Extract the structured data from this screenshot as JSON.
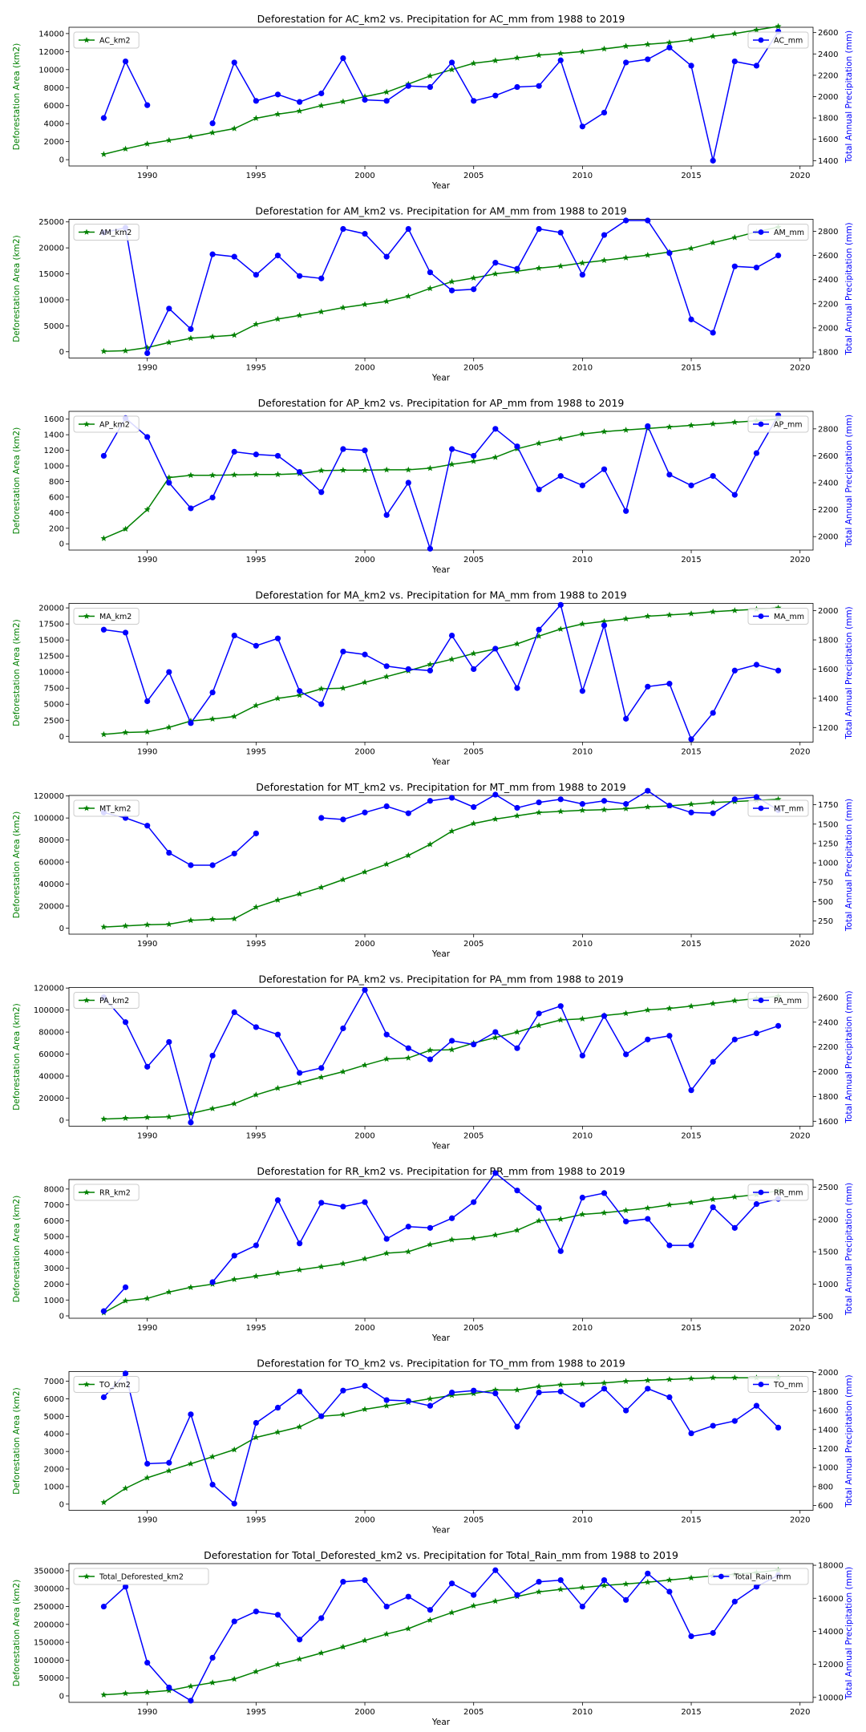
{
  "colors": {
    "deforestation": "#008000",
    "precipitation": "#0000ff",
    "axis": "#000000",
    "legend_border": "#cccccc"
  },
  "common": {
    "xlabel": "Year",
    "ylabel_left": "Deforestation Area (km2)",
    "ylabel_right": "Total Annual Precipitation (mm)",
    "x_ticks": [
      1990,
      1995,
      2000,
      2005,
      2010,
      2015,
      2020
    ],
    "xlim": [
      1986.4,
      2020.6
    ],
    "years": [
      1988,
      1989,
      1990,
      1991,
      1992,
      1993,
      1994,
      1995,
      1996,
      1997,
      1998,
      1999,
      2000,
      2001,
      2002,
      2003,
      2004,
      2005,
      2006,
      2007,
      2008,
      2009,
      2010,
      2011,
      2012,
      2013,
      2014,
      2015,
      2016,
      2017,
      2018,
      2019
    ],
    "grid": false,
    "legend_left_position": "upper left",
    "legend_right_position": "upper right",
    "left_marker": "star",
    "right_marker": "circle"
  },
  "chart_data": [
    {
      "type": "line",
      "title": "Deforestation for AC_km2 vs. Precipitation for AC_mm from 1988 to 2019",
      "left": {
        "name": "AC_km2",
        "ylim": [
          -700,
          14700
        ],
        "ticks": [
          0,
          2000,
          4000,
          6000,
          8000,
          10000,
          12000,
          14000
        ],
        "values": [
          600,
          1200,
          1750,
          2150,
          2550,
          3000,
          3450,
          4600,
          5050,
          5400,
          6000,
          6450,
          7000,
          7500,
          8400,
          9300,
          10000,
          10700,
          11000,
          11300,
          11600,
          11800,
          12000,
          12300,
          12600,
          12800,
          13000,
          13300,
          13700,
          14000,
          14400,
          14800
        ]
      },
      "right": {
        "name": "AC_mm",
        "ylim": [
          1350,
          2650
        ],
        "ticks": [
          1400,
          1600,
          1800,
          2000,
          2200,
          2400,
          2600
        ],
        "values": [
          1800,
          2330,
          1920,
          null,
          null,
          1750,
          2320,
          1960,
          2020,
          1950,
          2030,
          2360,
          1970,
          1960,
          2100,
          2090,
          2320,
          1960,
          2010,
          2090,
          2100,
          2340,
          1720,
          1850,
          2320,
          2350,
          2460,
          2290,
          1400,
          2330,
          2290,
          2610
        ]
      }
    },
    {
      "type": "line",
      "title": "Deforestation for AM_km2 vs. Precipitation for AM_mm from 1988 to 2019",
      "left": {
        "name": "AM_km2",
        "ylim": [
          -1200,
          25500
        ],
        "ticks": [
          0,
          5000,
          10000,
          15000,
          20000,
          25000
        ],
        "values": [
          100,
          200,
          800,
          1800,
          2600,
          2900,
          3200,
          5300,
          6300,
          7000,
          7700,
          8500,
          9100,
          9700,
          10700,
          12200,
          13500,
          14200,
          15000,
          15500,
          16100,
          16500,
          17100,
          17600,
          18100,
          18600,
          19200,
          19900,
          21000,
          22000,
          23100,
          24000
        ]
      },
      "right": {
        "name": "AM_mm",
        "ylim": [
          1750,
          2900
        ],
        "ticks": [
          1800,
          2000,
          2200,
          2400,
          2600,
          2800
        ],
        "values": [
          2790,
          2830,
          1790,
          2160,
          1990,
          2610,
          2590,
          2440,
          2600,
          2430,
          2410,
          2820,
          2780,
          2590,
          2820,
          2460,
          2310,
          2320,
          2540,
          2490,
          2820,
          2790,
          2440,
          2770,
          2890,
          2890,
          2620,
          2070,
          1960,
          2510,
          2500,
          2600
        ]
      }
    },
    {
      "type": "line",
      "title": "Deforestation for AP_km2 vs. Precipitation for AP_mm from 1988 to 2019",
      "left": {
        "name": "AP_km2",
        "ylim": [
          -80,
          1700
        ],
        "ticks": [
          0,
          200,
          400,
          600,
          800,
          1000,
          1200,
          1400,
          1600
        ],
        "values": [
          70,
          190,
          440,
          850,
          880,
          880,
          885,
          890,
          890,
          900,
          940,
          945,
          945,
          950,
          950,
          970,
          1020,
          1060,
          1110,
          1220,
          1290,
          1350,
          1410,
          1440,
          1460,
          1480,
          1500,
          1520,
          1540,
          1560,
          1580,
          1600
        ]
      },
      "right": {
        "name": "AP_mm",
        "ylim": [
          1900,
          2930
        ],
        "ticks": [
          2000,
          2200,
          2400,
          2600,
          2800
        ],
        "values": [
          2600,
          2880,
          2740,
          2400,
          2210,
          2290,
          2630,
          2610,
          2600,
          2480,
          2330,
          2650,
          2640,
          2160,
          2400,
          1910,
          2650,
          2600,
          2800,
          2670,
          2350,
          2450,
          2380,
          2500,
          2190,
          2820,
          2460,
          2380,
          2450,
          2310,
          2620,
          2900
        ]
      }
    },
    {
      "type": "line",
      "title": "Deforestation for MA_km2 vs. Precipitation for MA_mm from 1988 to 2019",
      "left": {
        "name": "MA_km2",
        "ylim": [
          -900,
          20700
        ],
        "ticks": [
          0,
          2500,
          5000,
          7500,
          10000,
          12500,
          15000,
          17500,
          20000
        ],
        "values": [
          300,
          600,
          700,
          1400,
          2400,
          2700,
          3100,
          4800,
          5900,
          6400,
          7400,
          7500,
          8400,
          9300,
          10200,
          11200,
          12000,
          12900,
          13600,
          14400,
          15600,
          16700,
          17500,
          17900,
          18300,
          18700,
          18900,
          19100,
          19400,
          19600,
          19800,
          20000
        ]
      },
      "right": {
        "name": "MA_mm",
        "ylim": [
          1100,
          2050
        ],
        "ticks": [
          1200,
          1400,
          1600,
          1800,
          2000
        ],
        "values": [
          1870,
          1850,
          1380,
          1580,
          1230,
          1440,
          1830,
          1760,
          1810,
          1450,
          1360,
          1720,
          1700,
          1620,
          1600,
          1590,
          1830,
          1600,
          1740,
          1470,
          1870,
          2040,
          1450,
          1900,
          1260,
          1480,
          1500,
          1120,
          1300,
          1590,
          1630,
          1590
        ]
      }
    },
    {
      "type": "line",
      "title": "Deforestation for MT_km2 vs. Precipitation for MT_mm from 1988 to 2019",
      "left": {
        "name": "MT_km2",
        "ylim": [
          -5500,
          120500
        ],
        "ticks": [
          0,
          20000,
          40000,
          60000,
          80000,
          100000,
          120000
        ],
        "values": [
          1000,
          2000,
          3000,
          3500,
          7000,
          8000,
          8500,
          19000,
          25500,
          31000,
          37000,
          44000,
          51000,
          58000,
          66000,
          76000,
          88000,
          95000,
          99000,
          102000,
          105000,
          106000,
          107000,
          107500,
          108500,
          110000,
          111000,
          112500,
          114000,
          115000,
          116000,
          117000
        ]
      },
      "right": {
        "name": "MT_mm",
        "ylim": [
          80,
          1870
        ],
        "ticks": [
          250,
          500,
          750,
          1000,
          1250,
          1500,
          1750
        ],
        "values": [
          1650,
          1580,
          1480,
          1130,
          970,
          970,
          1120,
          1380,
          null,
          null,
          1580,
          1560,
          1650,
          1730,
          1640,
          1800,
          1840,
          1720,
          1880,
          1710,
          1780,
          1820,
          1760,
          1800,
          1760,
          1930,
          1740,
          1650,
          1640,
          1820,
          1850,
          1680
        ]
      }
    },
    {
      "type": "line",
      "title": "Deforestation for PA_km2 vs. Precipitation for PA_mm from 1988 to 2019",
      "left": {
        "name": "PA_km2",
        "ylim": [
          -5500,
          120500
        ],
        "ticks": [
          0,
          20000,
          40000,
          60000,
          80000,
          100000,
          120000
        ],
        "values": [
          1000,
          1800,
          2500,
          3000,
          6000,
          10500,
          15000,
          23000,
          29000,
          34000,
          39000,
          44000,
          50000,
          55500,
          56500,
          63500,
          64000,
          70000,
          75000,
          80000,
          86000,
          91000,
          92000,
          95000,
          97000,
          100000,
          101500,
          103500,
          106000,
          108500,
          110500,
          112500
        ]
      },
      "right": {
        "name": "PA_mm",
        "ylim": [
          1560,
          2680
        ],
        "ticks": [
          1600,
          1800,
          2000,
          2200,
          2400,
          2600
        ],
        "values": [
          2600,
          2400,
          2040,
          2240,
          1590,
          2130,
          2480,
          2360,
          2300,
          1990,
          2030,
          2350,
          2660,
          2300,
          2190,
          2100,
          2250,
          2220,
          2320,
          2190,
          2470,
          2530,
          2130,
          2450,
          2140,
          2260,
          2290,
          1850,
          2080,
          2260,
          2310,
          2370
        ]
      }
    },
    {
      "type": "line",
      "title": "Deforestation for RR_km2 vs. Precipitation for RR_mm from 1988 to 2019",
      "left": {
        "name": "RR_km2",
        "ylim": [
          -150,
          8600
        ],
        "ticks": [
          0,
          1000,
          2000,
          3000,
          4000,
          5000,
          6000,
          7000,
          8000
        ],
        "values": [
          200,
          950,
          1100,
          1500,
          1800,
          2000,
          2300,
          2500,
          2700,
          2900,
          3100,
          3300,
          3600,
          3950,
          4050,
          4500,
          4800,
          4900,
          5100,
          5400,
          6000,
          6100,
          6400,
          6500,
          6650,
          6800,
          7000,
          7150,
          7350,
          7500,
          7650,
          7900
        ]
      },
      "right": {
        "name": "RR_mm",
        "ylim": [
          470,
          2620
        ],
        "ticks": [
          500,
          1000,
          1500,
          2000,
          2500
        ],
        "values": [
          580,
          950,
          null,
          null,
          null,
          1030,
          1440,
          1600,
          2300,
          1630,
          2260,
          2200,
          2270,
          1700,
          1890,
          1870,
          2020,
          2270,
          2720,
          2450,
          2180,
          1510,
          2340,
          2410,
          1970,
          2010,
          1600,
          1600,
          2190,
          1870,
          2240,
          2320
        ]
      }
    },
    {
      "type": "line",
      "title": "Deforestation for TO_km2 vs. Precipitation for TO_mm from 1988 to 2019",
      "left": {
        "name": "TO_km2",
        "ylim": [
          -350,
          7550
        ],
        "ticks": [
          0,
          1000,
          2000,
          3000,
          4000,
          5000,
          6000,
          7000
        ],
        "values": [
          100,
          900,
          1500,
          1900,
          2300,
          2700,
          3100,
          3800,
          4100,
          4400,
          5000,
          5100,
          5400,
          5600,
          5800,
          6000,
          6200,
          6300,
          6500,
          6500,
          6700,
          6800,
          6850,
          6900,
          7000,
          7050,
          7100,
          7150,
          7200,
          7200,
          7200,
          7200
        ]
      },
      "right": {
        "name": "TO_mm",
        "ylim": [
          550,
          2010
        ],
        "ticks": [
          600,
          800,
          1000,
          1200,
          1400,
          1600,
          1800,
          2000
        ],
        "values": [
          1740,
          1990,
          1040,
          1050,
          1560,
          820,
          620,
          1470,
          1630,
          1800,
          1540,
          1810,
          1860,
          1710,
          1700,
          1650,
          1790,
          1810,
          1780,
          1430,
          1790,
          1800,
          1660,
          1830,
          1600,
          1830,
          1740,
          1360,
          1440,
          1490,
          1650,
          1420
        ]
      }
    },
    {
      "type": "line",
      "title": "Deforestation for Total_Deforested_km2 vs. Precipitation for Total_Rain_mm from 1988 to 2019",
      "left": {
        "name": "Total_Deforested_km2",
        "ylim": [
          -18000,
          370000
        ],
        "ticks": [
          0,
          50000,
          100000,
          150000,
          200000,
          250000,
          300000,
          350000
        ],
        "values": [
          3000,
          7000,
          10000,
          15000,
          27000,
          37000,
          47000,
          68000,
          88000,
          103000,
          120000,
          137000,
          155000,
          173000,
          188000,
          212000,
          233000,
          252000,
          265000,
          278000,
          291000,
          298000,
          303000,
          309000,
          313000,
          318000,
          324000,
          330000,
          336000,
          340000,
          345000,
          352000
        ]
      },
      "right": {
        "name": "Total_Rain_mm",
        "ylim": [
          9700,
          18100
        ],
        "ticks": [
          10000,
          12000,
          14000,
          16000,
          18000
        ],
        "values": [
          15500,
          16700,
          12100,
          10600,
          9800,
          12400,
          14600,
          15200,
          15000,
          13500,
          14800,
          17000,
          17100,
          15500,
          16100,
          15300,
          16900,
          16200,
          17700,
          16200,
          17000,
          17100,
          15500,
          17100,
          15900,
          17500,
          16400,
          13700,
          13900,
          15800,
          16700,
          17400
        ]
      }
    }
  ]
}
